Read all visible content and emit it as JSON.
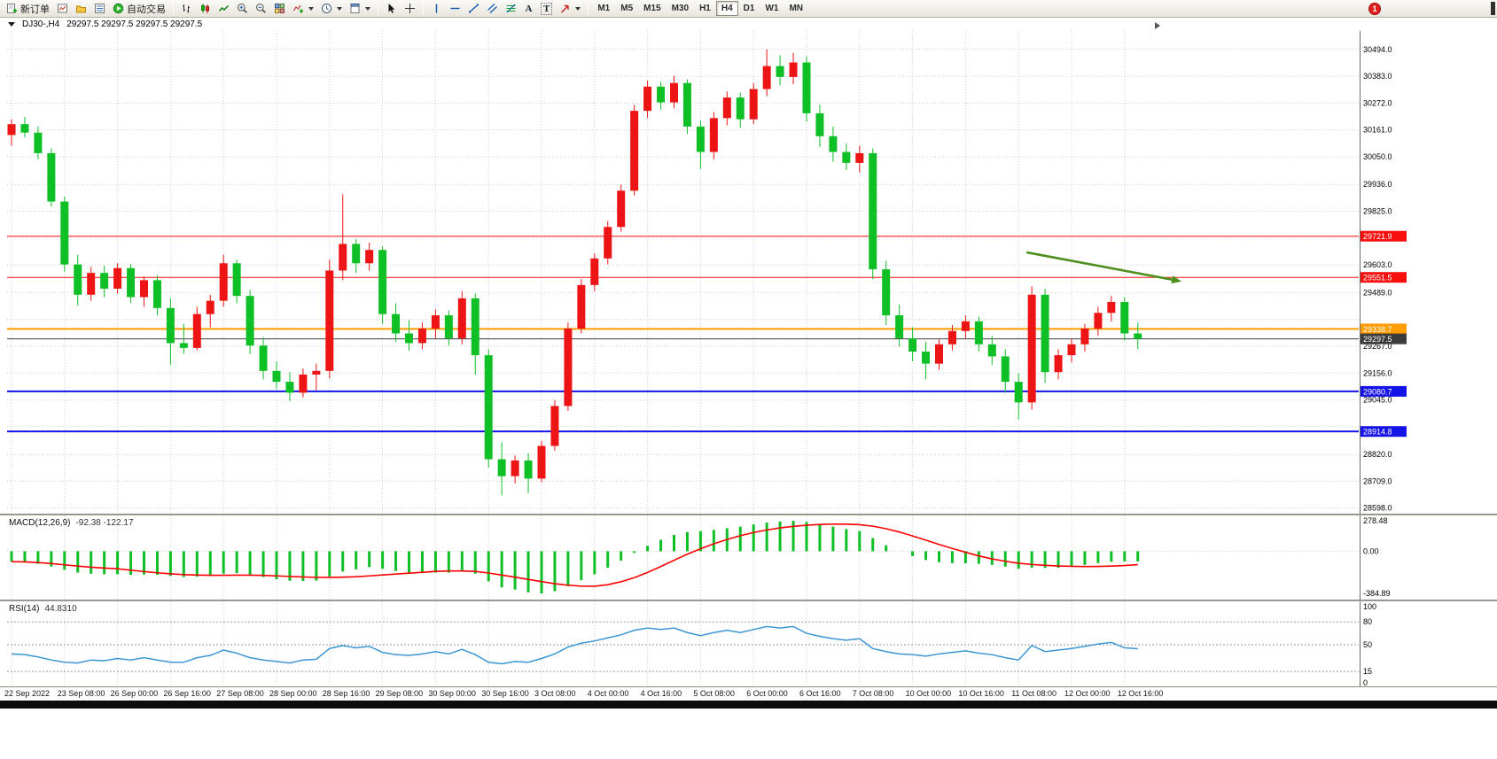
{
  "toolbar": {
    "new_order_label": "新订单",
    "auto_trading_label": "自动交易",
    "text_tool_glyph": "A",
    "label_tool_glyph": "T",
    "timeframes": [
      "M1",
      "M5",
      "M15",
      "M30",
      "H1",
      "H4",
      "D1",
      "W1",
      "MN"
    ],
    "active_timeframe": "H4",
    "notification_badge": "1"
  },
  "chart_header": {
    "symbol_period": "DJ30-,H4",
    "ohlc_text": "29297.5 29297.5 29297.5 29297.5"
  },
  "chart_data": [
    {
      "type": "candlestick",
      "title": "DJ30-,H4",
      "symbol": "DJ30-",
      "timeframe": "H4",
      "up_color": "#ec1414",
      "down_color": "#0fbf26",
      "current_price": 29297.5,
      "price_axis": {
        "max": 30570,
        "min": 28575,
        "ticks": [
          30494.0,
          30383.0,
          30272.0,
          30161.0,
          30050.0,
          29936.0,
          29825.0,
          29603.0,
          29489.0,
          29267.0,
          29156.0,
          29045.0,
          28820.0,
          28709.0,
          28598.0
        ],
        "gridlines": [
          30494,
          30383,
          30272,
          30161,
          30050,
          29936,
          29825,
          29714,
          29603,
          29489,
          29378,
          29267,
          29156,
          29045,
          28934,
          28820,
          28709,
          28598
        ]
      },
      "levels": [
        {
          "price": 29721.9,
          "label": "29721.9",
          "color": "#fa0f0f",
          "width": 1
        },
        {
          "price": 29551.5,
          "label": "29551.5",
          "color": "#fa0f0f",
          "width": 1
        },
        {
          "price": 29338.7,
          "label": "29338.7",
          "color": "#ff9c00",
          "width": 2
        },
        {
          "price": 29297.5,
          "label": "29297.5",
          "color": "#3c3c3c",
          "width": 1,
          "role": "current-price"
        },
        {
          "price": 29080.7,
          "label": "29080.7",
          "color": "#1414e8",
          "width": 2
        },
        {
          "price": 28914.8,
          "label": "28914.8",
          "color": "#1414e8",
          "width": 2
        }
      ],
      "trend_arrow": {
        "i1": 76.6,
        "p1": 29655,
        "i2": 88.3,
        "p2": 29535,
        "color": "#4e8f1f"
      },
      "time_labels": [
        "22 Sep 2022",
        "23 Sep 08:00",
        "26 Sep 00:00",
        "26 Sep 16:00",
        "27 Sep 08:00",
        "28 Sep 00:00",
        "28 Sep 16:00",
        "29 Sep 08:00",
        "30 Sep 00:00",
        "30 Sep 16:00",
        "3 Oct 08:00",
        "4 Oct 00:00",
        "4 Oct 16:00",
        "5 Oct 08:00",
        "6 Oct 00:00",
        "6 Oct 16:00",
        "7 Oct 08:00",
        "10 Oct 00:00",
        "10 Oct 16:00",
        "11 Oct 08:00",
        "12 Oct 00:00",
        "12 Oct 16:00"
      ],
      "candles_per_label": 4,
      "candles": [
        [
          30140,
          30205,
          30095,
          30185
        ],
        [
          30185,
          30215,
          30130,
          30150
        ],
        [
          30150,
          30175,
          30040,
          30065
        ],
        [
          30065,
          30085,
          29845,
          29865
        ],
        [
          29865,
          29885,
          29575,
          29605
        ],
        [
          29605,
          29645,
          29435,
          29480
        ],
        [
          29480,
          29595,
          29455,
          29570
        ],
        [
          29570,
          29600,
          29470,
          29505
        ],
        [
          29505,
          29610,
          29485,
          29590
        ],
        [
          29590,
          29605,
          29445,
          29470
        ],
        [
          29470,
          29555,
          29430,
          29540
        ],
        [
          29540,
          29560,
          29395,
          29425
        ],
        [
          29425,
          29465,
          29190,
          29280
        ],
        [
          29280,
          29360,
          29235,
          29260
        ],
        [
          29260,
          29430,
          29250,
          29400
        ],
        [
          29400,
          29480,
          29345,
          29455
        ],
        [
          29455,
          29645,
          29430,
          29610
        ],
        [
          29610,
          29625,
          29445,
          29475
        ],
        [
          29475,
          29500,
          29235,
          29270
        ],
        [
          29270,
          29305,
          29130,
          29165
        ],
        [
          29165,
          29205,
          29090,
          29120
        ],
        [
          29120,
          29160,
          29040,
          29075
        ],
        [
          29075,
          29175,
          29055,
          29150
        ],
        [
          29150,
          29195,
          29085,
          29165
        ],
        [
          29165,
          29625,
          29135,
          29580
        ],
        [
          29580,
          29895,
          29540,
          29690
        ],
        [
          29690,
          29710,
          29570,
          29610
        ],
        [
          29610,
          29695,
          29580,
          29665
        ],
        [
          29665,
          29680,
          29360,
          29400
        ],
        [
          29400,
          29445,
          29285,
          29320
        ],
        [
          29320,
          29375,
          29250,
          29280
        ],
        [
          29280,
          29365,
          29255,
          29340
        ],
        [
          29340,
          29420,
          29300,
          29395
        ],
        [
          29395,
          29415,
          29270,
          29300
        ],
        [
          29300,
          29495,
          29275,
          29465
        ],
        [
          29465,
          29485,
          29150,
          29230
        ],
        [
          29230,
          29255,
          28765,
          28800
        ],
        [
          28800,
          28870,
          28650,
          28730
        ],
        [
          28730,
          28815,
          28700,
          28795
        ],
        [
          28795,
          28825,
          28660,
          28720
        ],
        [
          28720,
          28875,
          28705,
          28855
        ],
        [
          28855,
          29045,
          28835,
          29020
        ],
        [
          29020,
          29365,
          29000,
          29340
        ],
        [
          29340,
          29545,
          29320,
          29520
        ],
        [
          29520,
          29650,
          29495,
          29630
        ],
        [
          29630,
          29785,
          29605,
          29760
        ],
        [
          29760,
          29935,
          29740,
          29910
        ],
        [
          29910,
          30265,
          29890,
          30240
        ],
        [
          30240,
          30365,
          30210,
          30340
        ],
        [
          30340,
          30360,
          30245,
          30275
        ],
        [
          30275,
          30385,
          30250,
          30355
        ],
        [
          30355,
          30370,
          30145,
          30175
        ],
        [
          30175,
          30200,
          30000,
          30070
        ],
        [
          30070,
          30235,
          30040,
          30210
        ],
        [
          30210,
          30320,
          30180,
          30295
        ],
        [
          30295,
          30315,
          30170,
          30205
        ],
        [
          30205,
          30355,
          30185,
          30330
        ],
        [
          30330,
          30494,
          30300,
          30425
        ],
        [
          30425,
          30470,
          30345,
          30380
        ],
        [
          30380,
          30480,
          30350,
          30440
        ],
        [
          30440,
          30465,
          30195,
          30230
        ],
        [
          30230,
          30265,
          30090,
          30135
        ],
        [
          30135,
          30175,
          30030,
          30070
        ],
        [
          30070,
          30105,
          29995,
          30025
        ],
        [
          30025,
          30095,
          29985,
          30065
        ],
        [
          30065,
          30085,
          29545,
          29585
        ],
        [
          29585,
          29620,
          29355,
          29395
        ],
        [
          29395,
          29440,
          29265,
          29300
        ],
        [
          29300,
          29345,
          29205,
          29245
        ],
        [
          29245,
          29285,
          29130,
          29195
        ],
        [
          29195,
          29295,
          29170,
          29275
        ],
        [
          29275,
          29355,
          29250,
          29330
        ],
        [
          29330,
          29395,
          29300,
          29370
        ],
        [
          29370,
          29390,
          29245,
          29275
        ],
        [
          29275,
          29310,
          29190,
          29225
        ],
        [
          29225,
          29255,
          29075,
          29120
        ],
        [
          29120,
          29155,
          28965,
          29035
        ],
        [
          29035,
          29515,
          29005,
          29480
        ],
        [
          29480,
          29505,
          29115,
          29160
        ],
        [
          29160,
          29255,
          29130,
          29230
        ],
        [
          29230,
          29300,
          29200,
          29275
        ],
        [
          29275,
          29360,
          29245,
          29340
        ],
        [
          29340,
          29430,
          29310,
          29405
        ],
        [
          29405,
          29475,
          29370,
          29450
        ],
        [
          29450,
          29470,
          29290,
          29320
        ],
        [
          29320,
          29365,
          29255,
          29297.5
        ]
      ]
    },
    {
      "type": "macd",
      "label": "MACD(12,26,9)",
      "values_text": "-92.38 -122.17",
      "range": {
        "max": 278.48,
        "min": -384.89
      },
      "axis_labels": [
        {
          "v": 278.48,
          "label": "278.48"
        },
        {
          "v": 0,
          "label": "0.00"
        },
        {
          "v": -384.89,
          "label": "-384.89"
        }
      ],
      "histogram_color": "#0fbf26",
      "signal_color": "#ff0000",
      "signal_period": 9,
      "histogram": [
        -95,
        -100,
        -115,
        -140,
        -170,
        -195,
        -205,
        -210,
        -210,
        -215,
        -212,
        -215,
        -225,
        -235,
        -232,
        -225,
        -205,
        -200,
        -215,
        -235,
        -255,
        -270,
        -272,
        -268,
        -230,
        -185,
        -165,
        -145,
        -160,
        -180,
        -195,
        -200,
        -195,
        -195,
        -185,
        -205,
        -275,
        -330,
        -350,
        -375,
        -384.9,
        -365,
        -320,
        -265,
        -210,
        -150,
        -85,
        -15,
        50,
        105,
        150,
        175,
        185,
        195,
        210,
        225,
        245,
        262,
        272,
        278.5,
        268,
        248,
        225,
        202,
        185,
        120,
        55,
        0,
        -45,
        -80,
        -100,
        -108,
        -110,
        -115,
        -125,
        -140,
        -160,
        -150,
        -152,
        -150,
        -140,
        -125,
        -108,
        -95,
        -93,
        -92.4
      ]
    },
    {
      "type": "rsi",
      "label": "RSI(14)",
      "value_text": "44.8310",
      "range": {
        "max": 100,
        "min": 0
      },
      "axis_labels": [
        {
          "v": 100,
          "label": "100"
        },
        {
          "v": 80,
          "label": "80"
        },
        {
          "v": 50,
          "label": "50"
        },
        {
          "v": 15,
          "label": "15"
        },
        {
          "v": 0,
          "label": "0"
        }
      ],
      "level_lines": [
        80,
        50,
        15
      ],
      "line_color": "#3c96d4",
      "values": [
        38,
        37,
        34,
        30,
        27,
        26,
        30,
        29,
        32,
        30,
        33,
        30,
        27,
        27,
        33,
        36,
        43,
        39,
        33,
        30,
        28,
        26,
        30,
        31,
        45,
        49,
        46,
        48,
        40,
        37,
        36,
        38,
        41,
        38,
        44,
        37,
        27,
        25,
        28,
        27,
        32,
        38,
        47,
        52,
        55,
        59,
        63,
        69,
        72,
        70,
        72,
        66,
        62,
        66,
        69,
        66,
        70,
        74,
        72,
        74,
        65,
        61,
        58,
        56,
        58,
        45,
        41,
        38,
        37,
        35,
        38,
        40,
        42,
        39,
        37,
        33,
        30,
        49,
        41,
        43,
        45,
        48,
        51,
        53,
        46,
        44.83
      ]
    }
  ]
}
